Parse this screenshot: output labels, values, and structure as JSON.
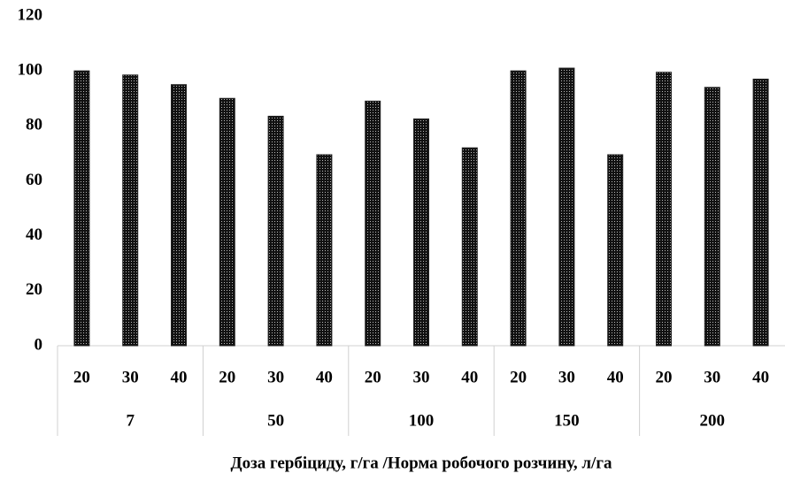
{
  "chart_data": {
    "type": "bar",
    "x_label": "Доза гербіциду, г/га /Норма робочого розчину, л/га",
    "groups": [
      "7",
      "50",
      "100",
      "150",
      "200"
    ],
    "categories": [
      "20",
      "30",
      "40",
      "20",
      "30",
      "40",
      "20",
      "30",
      "40",
      "20",
      "30",
      "40",
      "20",
      "30",
      "40"
    ],
    "values": [
      100,
      98.5,
      95,
      90,
      83.5,
      69.5,
      89,
      82.5,
      72,
      100,
      101,
      69.5,
      99.5,
      94,
      97
    ],
    "color": "#222222",
    "ylim": [
      0,
      120
    ],
    "yticks": [
      0,
      20,
      40,
      60,
      80,
      100,
      120
    ],
    "grid": false
  }
}
